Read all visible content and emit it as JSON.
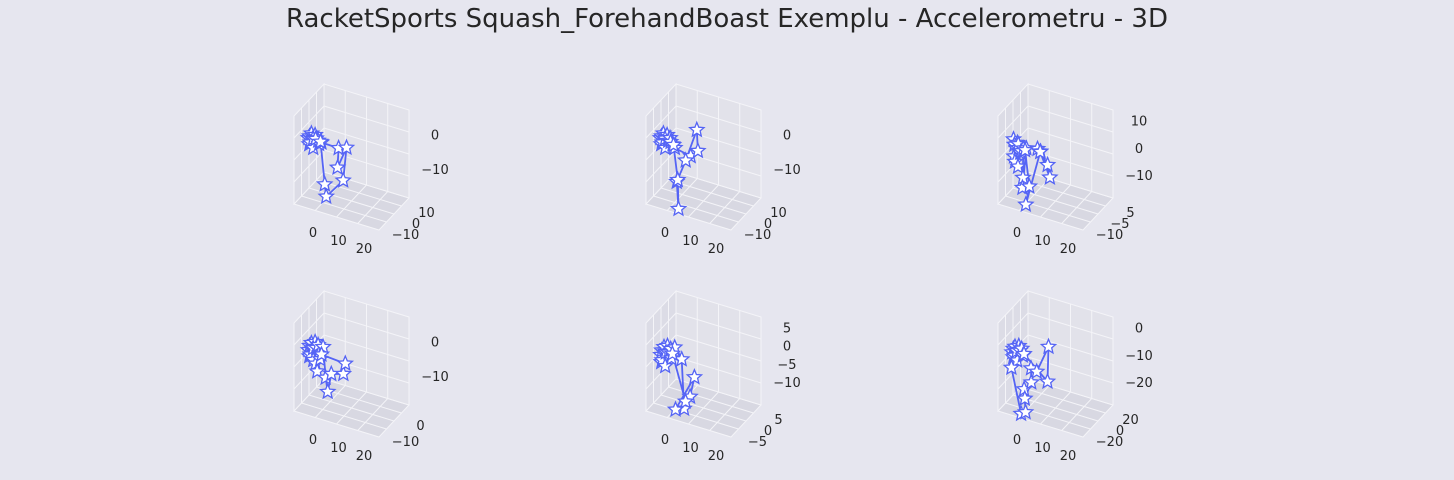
{
  "title": "RacketSports Squash_ForehandBoast Exemplu - Accelerometru - 3D",
  "colors": {
    "background": "#e6e6ef",
    "pane_left": "#dcdce6",
    "pane_right": "#e2e2ea",
    "pane_floor": "#d8d8e2",
    "grid": "#f4f4f8",
    "series": "#5564f5",
    "marker_face": "#ffffff",
    "text": "#262626"
  },
  "chart_data": [
    {
      "type": "line3d",
      "marker": "star",
      "xticks": [
        "0",
        "10",
        "20"
      ],
      "yticks": [
        "10",
        "0",
        "−10"
      ],
      "zticks": [
        "0",
        "−10"
      ],
      "xlim": [
        -5,
        30
      ],
      "ylim": [
        -14,
        16
      ],
      "zlim": [
        -25,
        8
      ],
      "points": [
        [
          2,
          3,
          0
        ],
        [
          3,
          2,
          1
        ],
        [
          4,
          4,
          2
        ],
        [
          5,
          3,
          0
        ],
        [
          3,
          1,
          -2
        ],
        [
          6,
          2,
          1
        ],
        [
          4,
          0,
          -1
        ],
        [
          7,
          3,
          2
        ],
        [
          5,
          5,
          0
        ],
        [
          6,
          1,
          -3
        ],
        [
          8,
          2,
          1
        ],
        [
          9,
          4,
          0
        ],
        [
          10,
          3,
          -1
        ],
        [
          8,
          0,
          1
        ],
        [
          12,
          2,
          0
        ],
        [
          25,
          1,
          0
        ],
        [
          24,
          2,
          -8
        ],
        [
          28,
          14,
          -1
        ],
        [
          26,
          12,
          -14
        ],
        [
          18,
          -9,
          -19
        ],
        [
          16,
          -5,
          -15
        ],
        [
          11,
          3,
          0
        ]
      ]
    },
    {
      "type": "line3d",
      "marker": "star",
      "xticks": [
        "0",
        "10",
        "20"
      ],
      "yticks": [
        "10",
        "0",
        "−10"
      ],
      "zticks": [
        "0",
        "−10"
      ],
      "xlim": [
        -5,
        30
      ],
      "ylim": [
        -14,
        16
      ],
      "zlim": [
        -25,
        8
      ],
      "points": [
        [
          2,
          3,
          0
        ],
        [
          3,
          2,
          1
        ],
        [
          4,
          4,
          2
        ],
        [
          5,
          3,
          0
        ],
        [
          3,
          1,
          -2
        ],
        [
          6,
          2,
          1
        ],
        [
          4,
          0,
          -1
        ],
        [
          7,
          3,
          2
        ],
        [
          5,
          5,
          0
        ],
        [
          6,
          1,
          -3
        ],
        [
          8,
          2,
          0
        ],
        [
          9,
          4,
          1
        ],
        [
          11,
          3,
          -1
        ],
        [
          10,
          1,
          0
        ],
        [
          13,
          2,
          -2
        ],
        [
          24,
          6,
          -4
        ],
        [
          28,
          12,
          -2
        ],
        [
          27,
          13,
          6
        ],
        [
          22,
          -2,
          -5
        ],
        [
          16,
          -5,
          -14
        ],
        [
          18,
          -8,
          -24
        ],
        [
          17,
          -6,
          -13
        ],
        [
          12,
          2,
          -1
        ]
      ]
    },
    {
      "type": "line3d",
      "marker": "star",
      "xticks": [
        "0",
        "10",
        "20"
      ],
      "yticks": [
        "5",
        "−5",
        "−10"
      ],
      "zticks": [
        "10",
        "0",
        "−10"
      ],
      "xlim": [
        -5,
        30
      ],
      "ylim": [
        -12,
        10
      ],
      "zlim": [
        -22,
        15
      ],
      "points": [
        [
          2,
          3,
          5
        ],
        [
          3,
          2,
          3
        ],
        [
          4,
          4,
          1
        ],
        [
          5,
          3,
          4
        ],
        [
          3,
          1,
          -2
        ],
        [
          6,
          2,
          2
        ],
        [
          4,
          0,
          -4
        ],
        [
          7,
          3,
          0
        ],
        [
          5,
          5,
          3
        ],
        [
          6,
          1,
          -6
        ],
        [
          8,
          2,
          1
        ],
        [
          9,
          4,
          2
        ],
        [
          10,
          0,
          -10
        ],
        [
          9,
          2,
          -15
        ],
        [
          12,
          2,
          3
        ],
        [
          20,
          3,
          4
        ],
        [
          22,
          4,
          3
        ],
        [
          26,
          8,
          -3
        ],
        [
          28,
          7,
          -8
        ],
        [
          22,
          3,
          3
        ],
        [
          14,
          -6,
          -20
        ],
        [
          16,
          -4,
          -12
        ],
        [
          11,
          2,
          2
        ]
      ]
    },
    {
      "type": "line3d",
      "marker": "star",
      "xticks": [
        "0",
        "10",
        "20"
      ],
      "yticks": [
        "0",
        "−10"
      ],
      "zticks": [
        "0",
        "−10"
      ],
      "xlim": [
        -5,
        30
      ],
      "ylim": [
        -14,
        16
      ],
      "zlim": [
        -25,
        8
      ],
      "points": [
        [
          2,
          3,
          -2
        ],
        [
          3,
          2,
          0
        ],
        [
          4,
          4,
          1
        ],
        [
          5,
          3,
          -1
        ],
        [
          3,
          1,
          -4
        ],
        [
          6,
          2,
          0
        ],
        [
          4,
          0,
          -3
        ],
        [
          7,
          3,
          2
        ],
        [
          5,
          5,
          -1
        ],
        [
          6,
          1,
          -5
        ],
        [
          8,
          2,
          0
        ],
        [
          9,
          4,
          1
        ],
        [
          10,
          3,
          -2
        ],
        [
          8,
          0,
          -6
        ],
        [
          9,
          1,
          -9
        ],
        [
          11,
          2,
          -4
        ],
        [
          13,
          3,
          1
        ],
        [
          16,
          -2,
          -10
        ],
        [
          18,
          -4,
          -15
        ],
        [
          20,
          -1,
          -8
        ],
        [
          27,
          8,
          -8
        ],
        [
          28,
          10,
          -4
        ],
        [
          12,
          2,
          -2
        ]
      ]
    },
    {
      "type": "line3d",
      "marker": "star",
      "xticks": [
        "0",
        "10",
        "20"
      ],
      "yticks": [
        "5",
        "0",
        "−5"
      ],
      "zticks": [
        "5",
        "0",
        "−5",
        "−10"
      ],
      "xlim": [
        -5,
        30
      ],
      "ylim": [
        -8,
        10
      ],
      "zlim": [
        -22,
        8
      ],
      "points": [
        [
          2,
          3,
          -3
        ],
        [
          3,
          2,
          -1
        ],
        [
          4,
          4,
          0
        ],
        [
          5,
          3,
          -2
        ],
        [
          3,
          1,
          -5
        ],
        [
          6,
          2,
          -1
        ],
        [
          4,
          0,
          -4
        ],
        [
          7,
          3,
          1
        ],
        [
          5,
          5,
          -2
        ],
        [
          6,
          1,
          -6
        ],
        [
          8,
          2,
          -1
        ],
        [
          9,
          4,
          0
        ],
        [
          10,
          3,
          -3
        ],
        [
          12,
          4,
          1
        ],
        [
          18,
          2,
          -2
        ],
        [
          22,
          -4,
          -18
        ],
        [
          16,
          -5,
          -19
        ],
        [
          26,
          6,
          -8
        ],
        [
          25,
          0,
          -14
        ],
        [
          22,
          -1,
          -16
        ],
        [
          11,
          2,
          -1
        ]
      ]
    },
    {
      "type": "line3d",
      "marker": "star",
      "xticks": [
        "0",
        "10",
        "20"
      ],
      "yticks": [
        "20",
        "0",
        "−20"
      ],
      "zticks": [
        "0",
        "−10",
        "−20"
      ],
      "xlim": [
        -5,
        30
      ],
      "ylim": [
        -28,
        30
      ],
      "zlim": [
        -30,
        10
      ],
      "points": [
        [
          2,
          3,
          -3
        ],
        [
          3,
          2,
          -1
        ],
        [
          4,
          4,
          0
        ],
        [
          5,
          3,
          -2
        ],
        [
          3,
          1,
          -5
        ],
        [
          6,
          2,
          -1
        ],
        [
          4,
          0,
          -4
        ],
        [
          7,
          3,
          1
        ],
        [
          5,
          5,
          -2
        ],
        [
          6,
          1,
          -6
        ],
        [
          8,
          2,
          -1
        ],
        [
          9,
          4,
          0
        ],
        [
          10,
          3,
          -3
        ],
        [
          2,
          -2,
          -10
        ],
        [
          10,
          -8,
          -30
        ],
        [
          14,
          -14,
          -28
        ],
        [
          12,
          -6,
          -18
        ],
        [
          13,
          -10,
          -22
        ],
        [
          17,
          -3,
          -14
        ],
        [
          16,
          4,
          -8
        ],
        [
          20,
          6,
          -9
        ],
        [
          27,
          22,
          3
        ],
        [
          26,
          24,
          -14
        ],
        [
          11,
          2,
          -2
        ]
      ]
    }
  ]
}
